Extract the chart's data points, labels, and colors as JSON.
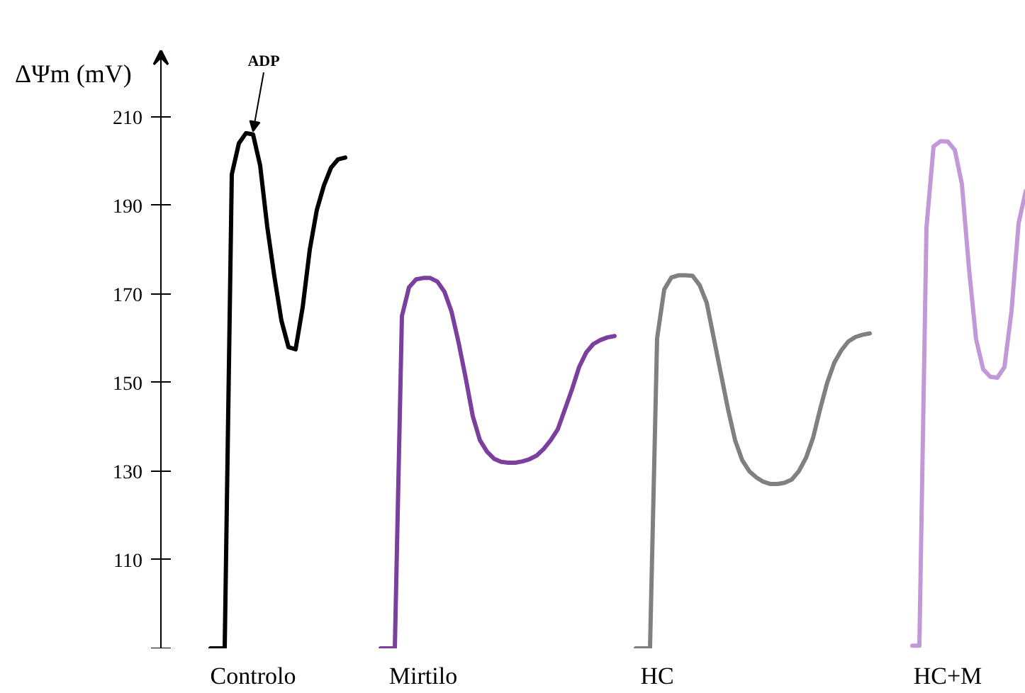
{
  "chart_data": {
    "type": "line",
    "ylabel": "ΔΨm (mV)",
    "ylim": [
      90,
      225
    ],
    "yticks": [
      {
        "value": 90,
        "label": null
      },
      110,
      130,
      150,
      170,
      190,
      210
    ],
    "categories": [
      null,
      null,
      null,
      null,
      null,
      null,
      null,
      null,
      null,
      null,
      null,
      null,
      null,
      "Controlo",
      null,
      null,
      null,
      null,
      null,
      null,
      null,
      null,
      null,
      null,
      null,
      null,
      null,
      null,
      null,
      null,
      null,
      null,
      null,
      null,
      null,
      null,
      null,
      "Mirtilo",
      null,
      null,
      null,
      null,
      null,
      null,
      null,
      null,
      null,
      null,
      null,
      null,
      null,
      null,
      null,
      null,
      null,
      null,
      null,
      null,
      null,
      null,
      null,
      null,
      null,
      null,
      null,
      null,
      null,
      null,
      null,
      null,
      "HC",
      null,
      null,
      null,
      null,
      null,
      null,
      null,
      null,
      null,
      null,
      null,
      null,
      null,
      null,
      null,
      null,
      null,
      null,
      null,
      null,
      null,
      null,
      null,
      null,
      null,
      null,
      null,
      null,
      null,
      null,
      null,
      null,
      null,
      null,
      null,
      null,
      null,
      null,
      null,
      null,
      "HC+M",
      null,
      null,
      null,
      null,
      null,
      null,
      null,
      null,
      null,
      null,
      null
    ],
    "tick_labels": true,
    "grid": false,
    "marker": "none",
    "line_style": "solid",
    "series": [
      {
        "color": "#000000",
        "values": [
          null,
          null,
          null,
          null,
          null,
          null,
          null,
          90,
          90,
          90,
          197,
          204,
          206.3,
          206,
          199,
          185.2,
          174,
          164,
          158,
          157.5,
          167,
          180,
          189,
          194.5,
          198.5,
          200.4,
          200.8,
          null,
          null,
          null,
          null,
          null,
          null,
          null,
          null,
          null,
          null,
          null,
          null,
          null,
          null,
          null,
          null,
          null,
          null,
          null,
          null,
          null,
          null,
          null,
          null,
          null,
          null,
          null,
          null,
          null,
          null,
          null,
          null,
          null,
          null,
          null,
          null,
          null,
          null,
          null,
          null,
          null,
          null,
          null,
          null,
          null,
          null,
          null,
          null,
          null,
          null,
          null,
          null,
          null,
          null,
          null,
          null,
          null,
          null,
          null,
          null,
          null,
          null,
          null,
          null,
          null,
          null,
          null,
          null,
          null,
          null,
          null,
          null,
          null,
          null,
          null,
          null,
          null,
          null,
          null,
          null,
          null,
          null,
          null,
          null,
          null,
          null,
          null,
          null,
          null,
          null,
          null,
          null,
          null,
          null,
          null,
          null
        ]
      },
      {
        "color": "#7b3f9e",
        "values": [
          null,
          null,
          null,
          null,
          null,
          null,
          null,
          null,
          null,
          null,
          null,
          null,
          null,
          null,
          null,
          null,
          null,
          null,
          null,
          null,
          null,
          null,
          null,
          null,
          null,
          null,
          null,
          null,
          null,
          null,
          null,
          90,
          90,
          90,
          165,
          171.5,
          173.3,
          173.6,
          173.6,
          172.8,
          170.5,
          166,
          159,
          151,
          142.4,
          137,
          134.4,
          132.8,
          132.1,
          131.9,
          131.9,
          132.2,
          132.7,
          133.5,
          135,
          137,
          139.5,
          144,
          148.5,
          153.5,
          156.8,
          158.7,
          159.6,
          160.2,
          160.5,
          null,
          null,
          null,
          null,
          null,
          null,
          null,
          null,
          null,
          null,
          null,
          null,
          null,
          null,
          null,
          null,
          null,
          null,
          null,
          null,
          null,
          null,
          null,
          null,
          null,
          null,
          null,
          null,
          null,
          null,
          null,
          null,
          null,
          null,
          null,
          null,
          null,
          null,
          null,
          null,
          null,
          null,
          null,
          null,
          null,
          null,
          null,
          null,
          null,
          null,
          null,
          null,
          null,
          null,
          null,
          null,
          null,
          null
        ]
      },
      {
        "color": "#808080",
        "values": [
          null,
          null,
          null,
          null,
          null,
          null,
          null,
          null,
          null,
          null,
          null,
          null,
          null,
          null,
          null,
          null,
          null,
          null,
          null,
          null,
          null,
          null,
          null,
          null,
          null,
          null,
          null,
          null,
          null,
          null,
          null,
          null,
          null,
          null,
          null,
          null,
          null,
          null,
          null,
          null,
          null,
          null,
          null,
          null,
          null,
          null,
          null,
          null,
          null,
          null,
          null,
          null,
          null,
          null,
          null,
          null,
          null,
          null,
          null,
          null,
          null,
          null,
          null,
          null,
          null,
          null,
          null,
          90,
          90,
          90,
          160,
          171,
          173.7,
          174.2,
          174.2,
          174.1,
          172,
          168,
          160,
          152,
          144,
          137,
          132.5,
          130,
          128.6,
          127.6,
          127.1,
          127.1,
          127.4,
          128.1,
          130,
          133,
          137.5,
          144,
          150,
          154.5,
          157.3,
          159.3,
          160.3,
          160.8,
          161.1,
          null,
          null,
          null,
          null,
          null,
          null,
          null,
          null,
          null,
          null,
          null,
          null,
          null,
          null,
          null,
          null,
          null,
          null,
          null,
          null,
          null,
          null
        ]
      },
      {
        "color": "#c398d8",
        "values": [
          null,
          null,
          null,
          null,
          null,
          null,
          null,
          null,
          null,
          null,
          null,
          null,
          null,
          null,
          null,
          null,
          null,
          null,
          null,
          null,
          null,
          null,
          null,
          null,
          null,
          null,
          null,
          null,
          null,
          null,
          null,
          null,
          null,
          null,
          null,
          null,
          null,
          null,
          null,
          null,
          null,
          null,
          null,
          null,
          null,
          null,
          null,
          null,
          null,
          null,
          null,
          null,
          null,
          null,
          null,
          null,
          null,
          null,
          null,
          null,
          null,
          null,
          null,
          null,
          null,
          null,
          null,
          null,
          null,
          null,
          null,
          null,
          null,
          null,
          null,
          null,
          null,
          null,
          null,
          null,
          null,
          null,
          null,
          null,
          null,
          null,
          null,
          null,
          null,
          null,
          null,
          null,
          null,
          null,
          null,
          null,
          null,
          null,
          null,
          null,
          null,
          null,
          null,
          null,
          null,
          null,
          90.6,
          90.6,
          185,
          203.3,
          204.5,
          204.4,
          202.5,
          194.8,
          175.7,
          159.8,
          153,
          151.3,
          151.1,
          153.5,
          166.2,
          186,
          193.2
        ]
      }
    ],
    "annotations": [
      {
        "text": "ADP",
        "x": "Controlo",
        "y": 206
      }
    ]
  }
}
